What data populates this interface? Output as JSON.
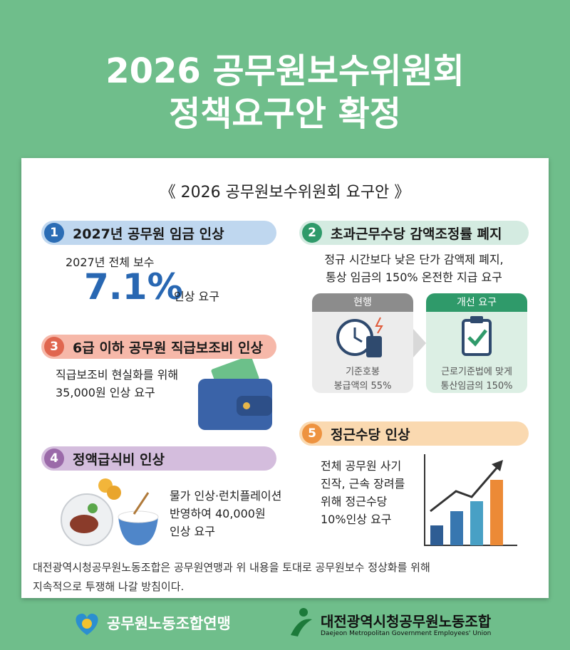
{
  "header": {
    "title_lines": [
      "2026 공무원보수위원회",
      "정책요구안 확정"
    ]
  },
  "panel": {
    "title": "《 2026 공무원보수위원회 요구안 》"
  },
  "sections": [
    {
      "number": "1",
      "title": "2027년 공무원 임금 인상",
      "lines": [
        "2027년 전체 보수"
      ],
      "highlight": "7.1%",
      "suffix": "인상 요구"
    },
    {
      "number": "2",
      "title": "초과근무수당 감액조정률 폐지",
      "lines": [
        "정규 시간보다 낮은 단가 감액제 폐지,",
        "통상 임금의 150% 온전한 지급 요구"
      ],
      "current": {
        "label": "현행",
        "lines": [
          "기준호봉",
          "봉급액의 55%"
        ]
      },
      "proposed": {
        "label": "개선 요구",
        "lines": [
          "근로기준법에 맞게",
          "통산임금의 150%"
        ]
      }
    },
    {
      "number": "3",
      "title": "6급 이하 공무원 직급보조비 인상",
      "lines": [
        "직급보조비 현실화를 위해",
        "35,000원 인상 요구"
      ]
    },
    {
      "number": "4",
      "title": "정액급식비 인상",
      "lines": [
        "물가 인상·런치플레이션",
        "반영하여 40,000원",
        "인상 요구"
      ]
    },
    {
      "number": "5",
      "title": "정근수당 인상",
      "lines": [
        "전체 공무원 사기",
        "진작, 근속 장려를",
        "위해 정근수당",
        "10%인상 요구"
      ]
    }
  ],
  "footer": {
    "note_lines": [
      "대전광역시청공무원노동조합은 공무원연맹과 위 내용을 토대로 공무원보수 정상화를 위해",
      "지속적으로 투쟁해 나갈 방침이다."
    ],
    "logo_left": "공무원노동조합연맹",
    "logo_right": "대전광역시청공무원노동조합",
    "logo_right_en": "Daejeon Metropolitan Government Employees' Union"
  }
}
